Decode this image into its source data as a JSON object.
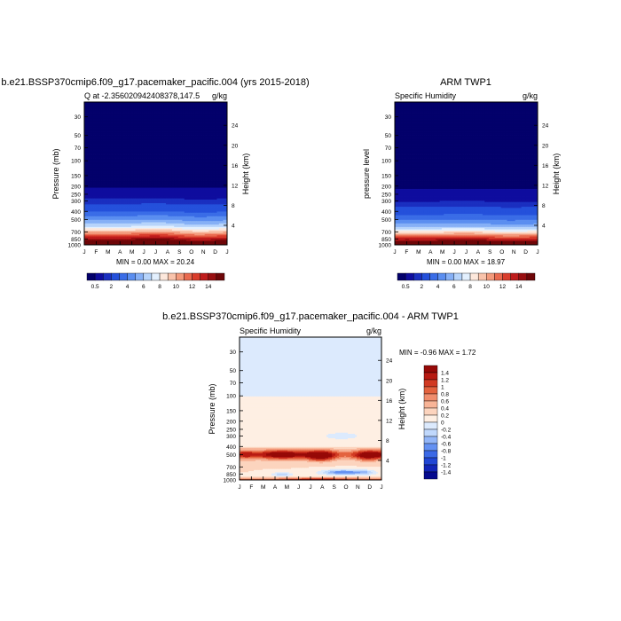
{
  "panels": [
    {
      "title": "b.e21.BSSP370cmip6.f09_g17.pacemaker_pacific.004 (yrs 2015-2018)",
      "subtitle_left": "Q at -2.356020942408378,147.5",
      "subtitle_right": "g/kg",
      "ylabel": "Pressure (mb)",
      "ylabel_right": "Height (km)",
      "stats": "MIN =   0.00 MAX =  20.24"
    },
    {
      "title": "ARM TWP1",
      "subtitle_left": "Specific Humidity",
      "subtitle_right": "g/kg",
      "ylabel": "pressure level",
      "ylabel_right": "Height (km)",
      "stats": "MIN =   0.00 MAX =  18.97"
    },
    {
      "title": "b.e21.BSSP370cmip6.f09_g17.pacemaker_pacific.004 - ARM TWP1",
      "subtitle_left": "Specific Humidity",
      "subtitle_right": "g/kg",
      "ylabel": "Pressure (mb)",
      "ylabel_right": "Height (km)",
      "stats": "MIN =  -0.96 MAX =   1.72"
    }
  ],
  "chart_data": [
    {
      "type": "heatmap",
      "title": "b.e21.BSSP370cmip6.f09_g17.pacemaker_pacific.004 (yrs 2015-2018)",
      "xlabel": "",
      "ylabel": "Pressure (mb)",
      "x": [
        "J",
        "F",
        "M",
        "A",
        "M",
        "J",
        "J",
        "A",
        "S",
        "O",
        "N",
        "D",
        "J"
      ],
      "y_ticks": [
        30,
        50,
        70,
        100,
        150,
        200,
        250,
        300,
        400,
        500,
        700,
        850,
        1000
      ],
      "y_right_ticks": [
        4,
        8,
        12,
        16,
        20,
        24
      ],
      "y_scale": "log-pressure",
      "ylim": [
        1000,
        20
      ],
      "colorbar": {
        "position": "bottom",
        "labels": [
          "0.5",
          "2",
          "4",
          "6",
          "8",
          "10",
          "12",
          "14"
        ]
      },
      "values_summary": {
        "min": 0.0,
        "max": 20.24
      },
      "profile": [
        [
          1000,
          17.5
        ],
        [
          925,
          15.5
        ],
        [
          850,
          13.2
        ],
        [
          700,
          8.8
        ],
        [
          600,
          5.8
        ],
        [
          500,
          3.8
        ],
        [
          400,
          1.9
        ],
        [
          300,
          0.6
        ],
        [
          250,
          0.3
        ],
        [
          200,
          0.05
        ],
        [
          20,
          0.0
        ]
      ]
    },
    {
      "type": "heatmap",
      "title": "ARM TWP1",
      "xlabel": "",
      "ylabel": "pressure level",
      "x": [
        "J",
        "F",
        "M",
        "A",
        "M",
        "J",
        "J",
        "A",
        "S",
        "O",
        "N",
        "D",
        "J"
      ],
      "y_ticks": [
        30,
        50,
        70,
        100,
        150,
        200,
        250,
        300,
        400,
        500,
        700,
        850,
        1000
      ],
      "y_right_ticks": [
        4,
        8,
        12,
        16,
        20,
        24
      ],
      "y_scale": "log-pressure",
      "ylim": [
        1000,
        20
      ],
      "colorbar": {
        "position": "bottom",
        "labels": [
          "0.5",
          "2",
          "4",
          "6",
          "8",
          "10",
          "12",
          "14"
        ]
      },
      "values_summary": {
        "min": 0.0,
        "max": 18.97
      },
      "profile": [
        [
          1000,
          17.0
        ],
        [
          925,
          15.0
        ],
        [
          850,
          12.5
        ],
        [
          700,
          7.5
        ],
        [
          600,
          4.6
        ],
        [
          500,
          2.9
        ],
        [
          400,
          1.4
        ],
        [
          300,
          0.45
        ],
        [
          250,
          0.2
        ],
        [
          200,
          0.04
        ],
        [
          20,
          0.0
        ]
      ]
    },
    {
      "type": "heatmap",
      "title": "b.e21.BSSP370cmip6.f09_g17.pacemaker_pacific.004 - ARM TWP1",
      "xlabel": "",
      "ylabel": "Pressure (mb)",
      "x": [
        "J",
        "F",
        "M",
        "A",
        "M",
        "J",
        "J",
        "A",
        "S",
        "O",
        "N",
        "D",
        "J"
      ],
      "y_ticks": [
        30,
        50,
        70,
        100,
        150,
        200,
        250,
        300,
        400,
        500,
        700,
        850,
        1000
      ],
      "y_right_ticks": [
        4,
        8,
        12,
        16,
        20,
        24
      ],
      "y_scale": "log-pressure",
      "ylim": [
        1000,
        20
      ],
      "colorbar": {
        "position": "right",
        "labels": [
          "1.4",
          "1.2",
          "1",
          "0.8",
          "0.6",
          "0.4",
          "0.2",
          "0",
          "-0.2",
          "-0.4",
          "-0.6",
          "-0.8",
          "-1",
          "-1.2",
          "-1.4"
        ]
      },
      "values_summary": {
        "min": -0.96,
        "max": 1.72
      }
    }
  ],
  "colors": {
    "dense_scale": [
      "#03006b",
      "#0f0d9e",
      "#1a2fc0",
      "#2450db",
      "#3a6de7",
      "#5b8ef0",
      "#86b0f6",
      "#b7d4fb",
      "#e3f0fe",
      "#fde8dc",
      "#f9c3ab",
      "#f39a7c",
      "#e96a4f",
      "#d93d2c",
      "#bf1c1c",
      "#980e10",
      "#6e0608"
    ],
    "diff_scale": [
      "#050a8e",
      "#1225b8",
      "#2146d4",
      "#3b69e6",
      "#6491f2",
      "#93b6f8",
      "#c0d8fc",
      "#dceafd",
      "#feefe3",
      "#fcd4be",
      "#f8b497",
      "#f08d6d",
      "#e3623e",
      "#d13a23",
      "#b71a12",
      "#960907"
    ]
  }
}
